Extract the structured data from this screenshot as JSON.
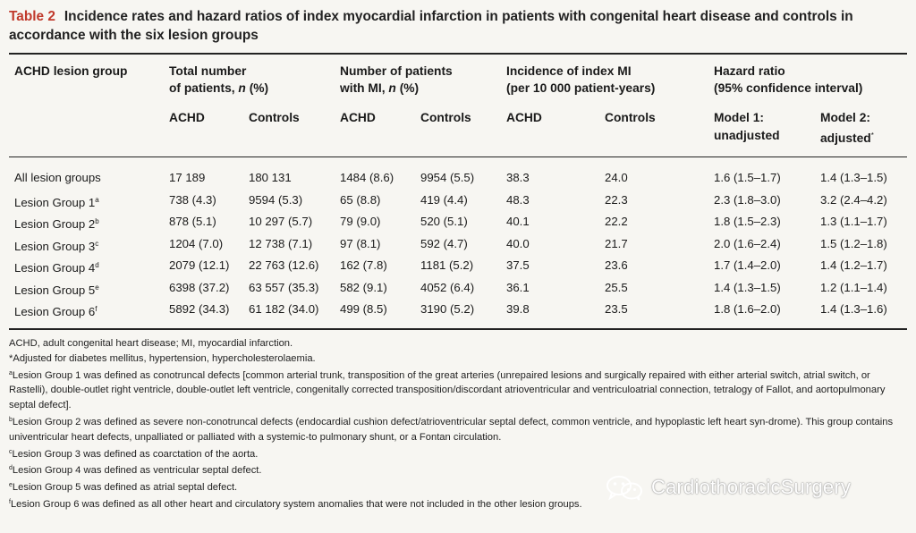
{
  "caption": {
    "table_number": "Table 2",
    "title": "Incidence rates and hazard ratios of index myocardial infarction in patients with congenital heart disease and controls in accordance with the six lesion groups"
  },
  "header": {
    "col1": "ACHD lesion group",
    "total_l1": "Total number",
    "total_l2a": "of patients, ",
    "total_l2n": "n",
    "total_l2b": " (%)",
    "mi_l1": "Number of patients",
    "mi_l2a": "with MI, ",
    "mi_l2n": "n",
    "mi_l2b": " (%)",
    "inc_l1": "Incidence of index MI",
    "inc_l2": "(per 10 000 patient-years)",
    "hr_l1": "Hazard ratio",
    "hr_l2": "(95% confidence interval)",
    "achd": "ACHD",
    "controls": "Controls",
    "model1_l1": "Model 1:",
    "model1_l2": "unadjusted",
    "model2_l1": "Model 2:",
    "model2_l2": "adjusted",
    "model2_mark": "*"
  },
  "rows": [
    {
      "label": "All lesion groups",
      "mark": "",
      "total_achd": "17 189",
      "total_ctrl": "180 131",
      "mi_achd": "1484 (8.6)",
      "mi_ctrl": "9954 (5.5)",
      "inc_achd": "38.3",
      "inc_ctrl": "24.0",
      "hr1": "1.6 (1.5–1.7)",
      "hr2": "1.4 (1.3–1.5)"
    },
    {
      "label": "Lesion Group 1",
      "mark": "a",
      "total_achd": "738 (4.3)",
      "total_ctrl": "9594 (5.3)",
      "mi_achd": "65 (8.8)",
      "mi_ctrl": "419 (4.4)",
      "inc_achd": "48.3",
      "inc_ctrl": "22.3",
      "hr1": "2.3 (1.8–3.0)",
      "hr2": "3.2 (2.4–4.2)"
    },
    {
      "label": "Lesion Group 2",
      "mark": "b",
      "total_achd": "878 (5.1)",
      "total_ctrl": "10 297 (5.7)",
      "mi_achd": "79 (9.0)",
      "mi_ctrl": "520 (5.1)",
      "inc_achd": "40.1",
      "inc_ctrl": "22.2",
      "hr1": "1.8 (1.5–2.3)",
      "hr2": "1.3 (1.1–1.7)"
    },
    {
      "label": "Lesion Group 3",
      "mark": "c",
      "total_achd": "1204 (7.0)",
      "total_ctrl": "12 738 (7.1)",
      "mi_achd": "97 (8.1)",
      "mi_ctrl": "592 (4.7)",
      "inc_achd": "40.0",
      "inc_ctrl": "21.7",
      "hr1": "2.0 (1.6–2.4)",
      "hr2": "1.5 (1.2–1.8)"
    },
    {
      "label": "Lesion Group 4",
      "mark": "d",
      "total_achd": "2079 (12.1)",
      "total_ctrl": "22 763 (12.6)",
      "mi_achd": "162 (7.8)",
      "mi_ctrl": "1181 (5.2)",
      "inc_achd": "37.5",
      "inc_ctrl": "23.6",
      "hr1": "1.7 (1.4–2.0)",
      "hr2": "1.4 (1.2–1.7)"
    },
    {
      "label": "Lesion Group 5",
      "mark": "e",
      "total_achd": "6398 (37.2)",
      "total_ctrl": "63 557 (35.3)",
      "mi_achd": "582 (9.1)",
      "mi_ctrl": "4052 (6.4)",
      "inc_achd": "36.1",
      "inc_ctrl": "25.5",
      "hr1": "1.4 (1.3–1.5)",
      "hr2": "1.2 (1.1–1.4)"
    },
    {
      "label": "Lesion Group 6",
      "mark": "f",
      "total_achd": "5892 (34.3)",
      "total_ctrl": "61 182 (34.0)",
      "mi_achd": "499 (8.5)",
      "mi_ctrl": "3190 (5.2)",
      "inc_achd": "39.8",
      "inc_ctrl": "23.5",
      "hr1": "1.8 (1.6–2.0)",
      "hr2": "1.4 (1.3–1.6)"
    }
  ],
  "footnotes": [
    {
      "mark": "",
      "text": "ACHD, adult congenital heart disease; MI, myocardial infarction."
    },
    {
      "mark": "",
      "text": "*Adjusted for diabetes mellitus, hypertension, hypercholesterolaemia."
    },
    {
      "mark": "a",
      "text": "Lesion Group 1 was defined as conotruncal defects [common arterial trunk, transposition of the great arteries (unrepaired lesions and surgically repaired with either arterial switch, atrial switch, or Rastelli), double-outlet right ventricle, double-outlet left ventricle, congenitally corrected transposition/discordant atrioventricular and ventriculoatrial connection, tetralogy of Fallot, and aortopulmonary septal defect]."
    },
    {
      "mark": "b",
      "text": "Lesion Group 2 was defined as severe non-conotruncal defects (endocardial cushion defect/atrioventricular septal defect, common ventricle, and hypoplastic left heart syn-drome). This group contains univentricular heart defects, unpalliated or palliated with a systemic-to pulmonary shunt, or a Fontan circulation."
    },
    {
      "mark": "c",
      "text": "Lesion Group 3 was defined as coarctation of the aorta."
    },
    {
      "mark": "d",
      "text": "Lesion Group 4 was defined as ventricular septal defect."
    },
    {
      "mark": "e",
      "text": "Lesion Group 5 was defined as atrial septal defect."
    },
    {
      "mark": "f",
      "text": "Lesion Group 6 was defined as all other heart and circulatory system anomalies that were not included in the other lesion groups."
    }
  ],
  "watermark": {
    "text": "CardiothoracicSurgery",
    "icon": "wechat-logo-icon"
  },
  "colors": {
    "accent": "#c0392b",
    "background": "#f7f6f2",
    "text": "#1a1a1a"
  }
}
